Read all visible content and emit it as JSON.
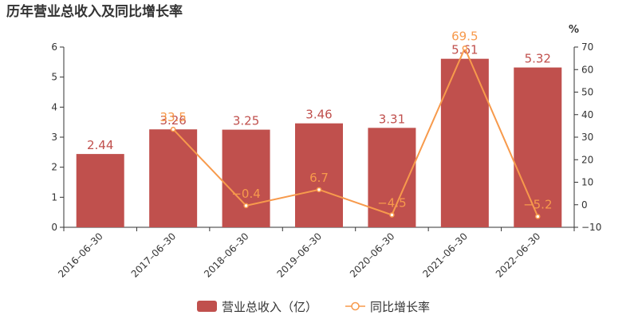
{
  "colors": {
    "bar": "#c0504d",
    "line": "#f79a4c",
    "axis": "#333333",
    "text": "#333333"
  },
  "chart_data": {
    "type": "bar",
    "title": "历年营业总收入及同比增长率",
    "categories": [
      "2016-06-30",
      "2017-06-30",
      "2018-06-30",
      "2019-06-30",
      "2020-06-30",
      "2021-06-30",
      "2022-06-30"
    ],
    "series": [
      {
        "name": "营业总收入（亿）",
        "type": "bar",
        "axis": "left",
        "values": [
          2.44,
          3.26,
          3.25,
          3.46,
          3.31,
          5.61,
          5.32
        ],
        "labels": [
          "2.44",
          "3.26",
          "3.25",
          "3.46",
          "3.31",
          "5.61",
          "5.32"
        ]
      },
      {
        "name": "同比增长率",
        "type": "line",
        "axis": "right",
        "values": [
          null,
          33.5,
          -0.4,
          6.7,
          -4.5,
          69.5,
          -5.2
        ],
        "labels": [
          "",
          "33.5",
          "-0.4",
          "6.7",
          "-4.5",
          "69.5",
          "-5.2"
        ]
      }
    ],
    "y_left": {
      "min": 0,
      "max": 6,
      "ticks": [
        0,
        1,
        2,
        3,
        4,
        5,
        6
      ]
    },
    "y_right": {
      "min": -10,
      "max": 70,
      "ticks": [
        -10,
        0,
        10,
        20,
        30,
        40,
        50,
        60,
        70
      ],
      "unit": "%"
    },
    "grid": false,
    "legend": "bottom-center"
  }
}
